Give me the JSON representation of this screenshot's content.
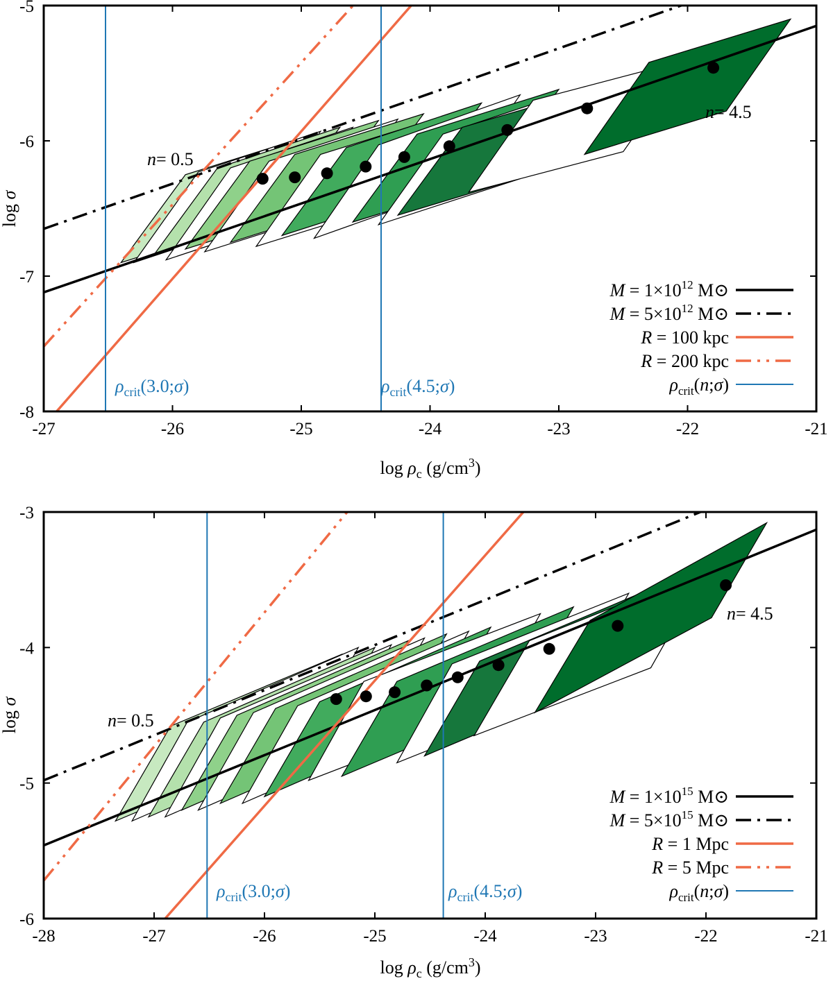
{
  "colors": {
    "solid_mass": "#000000",
    "radius": "#ef6a45",
    "critical": "#1f77b4",
    "greens": [
      "#c7e9c0",
      "#b4e1ac",
      "#a1d99b",
      "#8fd18a",
      "#74c476",
      "#5cb868",
      "#41ab5d",
      "#2f9e52",
      "#238b45",
      "#16773c",
      "#006d2c"
    ]
  },
  "chart_data": [
    {
      "type": "line",
      "title": "",
      "xlabel": "log ρc (g/cm3)",
      "ylabel": "log σ",
      "xlim": [
        -27,
        -21
      ],
      "ylim": [
        -8,
        -5
      ],
      "xticks": [
        "-27",
        "-26",
        "-25",
        "-24",
        "-23",
        "-22",
        "-21"
      ],
      "yticks": [
        "-8",
        "-7",
        "-6",
        "-5"
      ],
      "annotations": {
        "n_low": "n= 0.5",
        "n_high": "n= 4.5",
        "crit30": "ρcrit(3.0;σ)",
        "crit45": "ρcrit(4.5;σ)"
      },
      "legend_position": "bottom-right",
      "legend": [
        {
          "label": "M = 1×10^12 M⊙",
          "style": "solid-black"
        },
        {
          "label": "M = 5×10^12 M⊙",
          "style": "dashdot-black"
        },
        {
          "label": "R = 100 kpc",
          "style": "solid-orange"
        },
        {
          "label": "R = 200 kpc",
          "style": "dashdot-orange"
        },
        {
          "label": "ρcrit(n;σ)",
          "style": "solid-blue"
        }
      ],
      "series": [
        {
          "name": "M = 1×10^12 M⊙",
          "x": [
            -27,
            -21
          ],
          "y": [
            -7.12,
            -5.15
          ]
        },
        {
          "name": "M = 5×10^12 M⊙",
          "x": [
            -27,
            -21.9
          ],
          "y": [
            -6.65,
            -4.95
          ]
        },
        {
          "name": "R = 100 kpc",
          "x": [
            -26.9,
            -24.1
          ],
          "y": [
            -8.0,
            -4.95
          ]
        },
        {
          "name": "R = 200 kpc",
          "x": [
            -27.0,
            -24.55
          ],
          "y": [
            -7.52,
            -4.95
          ]
        },
        {
          "name": "ρcrit(3.0;σ)",
          "x": [
            -26.52,
            -26.52
          ],
          "y": [
            -8,
            -5
          ]
        },
        {
          "name": "ρcrit(4.5;σ)",
          "x": [
            -24.38,
            -24.38
          ],
          "y": [
            -8,
            -5
          ]
        }
      ],
      "points": {
        "n": [
          0.5,
          1.0,
          1.5,
          2.0,
          2.5,
          3.0,
          3.5,
          4.0,
          4.5
        ],
        "x": [
          -25.3,
          -25.05,
          -24.8,
          -24.5,
          -24.2,
          -23.85,
          -23.4,
          -22.78,
          -21.8
        ],
        "y": [
          -6.28,
          -6.27,
          -6.24,
          -6.19,
          -6.12,
          -6.04,
          -5.92,
          -5.76,
          -5.46
        ]
      },
      "bands": [
        {
          "n": 0.5,
          "fill": true,
          "poly": [
            [
              -26.4,
              -6.9
            ],
            [
              -25.9,
              -6.25
            ],
            [
              -24.9,
              -5.95
            ],
            [
              -25.4,
              -6.6
            ]
          ]
        },
        {
          "n": 1.0,
          "fill": false,
          "poly": [
            [
              -26.3,
              -6.9
            ],
            [
              -25.8,
              -6.23
            ],
            [
              -24.85,
              -5.93
            ],
            [
              -25.35,
              -6.6
            ]
          ]
        },
        {
          "n": 1.0,
          "fill": true,
          "poly": [
            [
              -26.15,
              -6.85
            ],
            [
              -25.65,
              -6.2
            ],
            [
              -24.7,
              -5.9
            ],
            [
              -25.2,
              -6.55
            ]
          ]
        },
        {
          "n": 1.5,
          "fill": false,
          "poly": [
            [
              -26.05,
              -6.88
            ],
            [
              -25.55,
              -6.2
            ],
            [
              -24.6,
              -5.9
            ],
            [
              -25.1,
              -6.58
            ]
          ]
        },
        {
          "n": 1.5,
          "fill": true,
          "poly": [
            [
              -25.9,
              -6.8
            ],
            [
              -25.4,
              -6.15
            ],
            [
              -24.4,
              -5.85
            ],
            [
              -24.9,
              -6.5
            ]
          ]
        },
        {
          "n": 2.0,
          "fill": false,
          "poly": [
            [
              -25.75,
              -6.82
            ],
            [
              -25.25,
              -6.15
            ],
            [
              -24.25,
              -5.84
            ],
            [
              -24.75,
              -6.52
            ]
          ]
        },
        {
          "n": 2.0,
          "fill": true,
          "poly": [
            [
              -25.55,
              -6.75
            ],
            [
              -25.05,
              -6.1
            ],
            [
              -24.05,
              -5.8
            ],
            [
              -24.55,
              -6.45
            ]
          ]
        },
        {
          "n": 2.5,
          "fill": false,
          "poly": [
            [
              -25.35,
              -6.78
            ],
            [
              -24.85,
              -6.1
            ],
            [
              -23.8,
              -5.79
            ],
            [
              -24.3,
              -6.47
            ]
          ]
        },
        {
          "n": 2.5,
          "fill": true,
          "poly": [
            [
              -25.15,
              -6.7
            ],
            [
              -24.65,
              -6.05
            ],
            [
              -23.6,
              -5.72
            ],
            [
              -24.1,
              -6.38
            ]
          ]
        },
        {
          "n": 3.0,
          "fill": false,
          "poly": [
            [
              -24.9,
              -6.72
            ],
            [
              -24.4,
              -6.03
            ],
            [
              -23.3,
              -5.66
            ],
            [
              -23.8,
              -6.35
            ]
          ]
        },
        {
          "n": 3.0,
          "fill": true,
          "poly": [
            [
              -24.6,
              -6.6
            ],
            [
              -24.1,
              -5.95
            ],
            [
              -23.0,
              -5.62
            ],
            [
              -23.5,
              -6.28
            ]
          ]
        },
        {
          "n": 3.5,
          "fill": false,
          "poly": [
            [
              -24.4,
              -6.62
            ],
            [
              -23.9,
              -5.95
            ],
            [
              -22.8,
              -5.6
            ],
            [
              -23.3,
              -6.28
            ]
          ]
        },
        {
          "n": 3.5,
          "fill": true,
          "poly": [
            [
              -24.25,
              -6.55
            ],
            [
              -23.75,
              -5.9
            ],
            [
              -22.6,
              -5.58
            ],
            [
              -23.1,
              -6.22
            ]
          ]
        },
        {
          "n": 4.0,
          "fill": false,
          "poly": [
            [
              -23.7,
              -6.38
            ],
            [
              -23.2,
              -5.7
            ],
            [
              -22.0,
              -5.4
            ],
            [
              -22.5,
              -6.08
            ]
          ]
        },
        {
          "n": 4.5,
          "fill": true,
          "poly": [
            [
              -22.8,
              -6.1
            ],
            [
              -22.3,
              -5.42
            ],
            [
              -21.2,
              -5.1
            ],
            [
              -21.7,
              -5.78
            ]
          ]
        }
      ]
    },
    {
      "type": "line",
      "title": "",
      "xlabel": "log ρc (g/cm3)",
      "ylabel": "log σ",
      "xlim": [
        -28,
        -21
      ],
      "ylim": [
        -6,
        -3
      ],
      "xticks": [
        "-28",
        "-27",
        "-26",
        "-25",
        "-24",
        "-23",
        "-22",
        "-21"
      ],
      "yticks": [
        "-6",
        "-5",
        "-4",
        "-3"
      ],
      "annotations": {
        "n_low": "n= 0.5",
        "n_high": "n= 4.5",
        "crit30": "ρcrit(3.0;σ)",
        "crit45": "ρcrit(4.5;σ)"
      },
      "legend_position": "bottom-right",
      "legend": [
        {
          "label": "M = 1×10^15 M⊙",
          "style": "solid-black"
        },
        {
          "label": "M = 5×10^15 M⊙",
          "style": "dashdot-black"
        },
        {
          "label": "R = 1 Mpc",
          "style": "solid-orange"
        },
        {
          "label": "R = 5 Mpc",
          "style": "dashdot-orange"
        },
        {
          "label": "ρcrit(n;σ)",
          "style": "solid-blue"
        }
      ],
      "series": [
        {
          "name": "M = 1×10^15 M⊙",
          "x": [
            -28,
            -21
          ],
          "y": [
            -5.46,
            -3.13
          ]
        },
        {
          "name": "M = 5×10^15 M⊙",
          "x": [
            -28,
            -21.9
          ],
          "y": [
            -4.98,
            -2.95
          ]
        },
        {
          "name": "R = 1 Mpc",
          "x": [
            -26.9,
            -23.6
          ],
          "y": [
            -6.0,
            -2.95
          ]
        },
        {
          "name": "R = 5 Mpc",
          "x": [
            -28.0,
            -25.2
          ],
          "y": [
            -5.72,
            -2.95
          ]
        },
        {
          "name": "ρcrit(3.0;σ)",
          "x": [
            -26.52,
            -26.52
          ],
          "y": [
            -6,
            -3
          ]
        },
        {
          "name": "ρcrit(4.5;σ)",
          "x": [
            -24.38,
            -24.38
          ],
          "y": [
            -6,
            -3
          ]
        }
      ],
      "points": {
        "n": [
          0.5,
          1.0,
          1.5,
          2.0,
          2.5,
          3.0,
          3.5,
          4.0,
          4.5
        ],
        "x": [
          -25.35,
          -25.08,
          -24.82,
          -24.53,
          -24.25,
          -23.88,
          -23.42,
          -22.8,
          -21.82
        ],
        "y": [
          -4.38,
          -4.36,
          -4.33,
          -4.28,
          -4.22,
          -4.13,
          -4.01,
          -3.84,
          -3.54
        ]
      },
      "bands": [
        {
          "n": 0.5,
          "fill": true,
          "poly": [
            [
              -27.35,
              -5.28
            ],
            [
              -26.85,
              -4.58
            ],
            [
              -25.3,
              -4.05
            ],
            [
              -25.8,
              -4.75
            ]
          ]
        },
        {
          "n": 1.0,
          "fill": false,
          "poly": [
            [
              -27.2,
              -5.28
            ],
            [
              -26.7,
              -4.55
            ],
            [
              -25.15,
              -4.0
            ],
            [
              -25.65,
              -4.73
            ]
          ]
        },
        {
          "n": 1.0,
          "fill": true,
          "poly": [
            [
              -27.05,
              -5.25
            ],
            [
              -26.55,
              -4.55
            ],
            [
              -25.0,
              -4.0
            ],
            [
              -25.5,
              -4.7
            ]
          ]
        },
        {
          "n": 1.5,
          "fill": false,
          "poly": [
            [
              -26.9,
              -5.25
            ],
            [
              -26.4,
              -4.52
            ],
            [
              -24.85,
              -3.98
            ],
            [
              -25.35,
              -4.7
            ]
          ]
        },
        {
          "n": 1.5,
          "fill": true,
          "poly": [
            [
              -26.75,
              -5.2
            ],
            [
              -26.25,
              -4.5
            ],
            [
              -24.7,
              -3.95
            ],
            [
              -25.2,
              -4.65
            ]
          ]
        },
        {
          "n": 2.0,
          "fill": false,
          "poly": [
            [
              -26.6,
              -5.2
            ],
            [
              -26.1,
              -4.48
            ],
            [
              -24.55,
              -3.93
            ],
            [
              -25.05,
              -4.65
            ]
          ]
        },
        {
          "n": 2.0,
          "fill": true,
          "poly": [
            [
              -26.4,
              -5.15
            ],
            [
              -25.9,
              -4.45
            ],
            [
              -24.35,
              -3.9
            ],
            [
              -24.85,
              -4.6
            ]
          ]
        },
        {
          "n": 2.5,
          "fill": false,
          "poly": [
            [
              -26.2,
              -5.15
            ],
            [
              -25.7,
              -4.43
            ],
            [
              -24.15,
              -3.88
            ],
            [
              -24.65,
              -4.6
            ]
          ]
        },
        {
          "n": 2.5,
          "fill": true,
          "poly": [
            [
              -26.0,
              -5.1
            ],
            [
              -25.5,
              -4.4
            ],
            [
              -23.95,
              -3.85
            ],
            [
              -24.45,
              -4.55
            ]
          ]
        },
        {
          "n": 3.0,
          "fill": false,
          "poly": [
            [
              -25.6,
              -4.98
            ],
            [
              -25.1,
              -4.25
            ],
            [
              -23.5,
              -3.75
            ],
            [
              -24.0,
              -4.48
            ]
          ]
        },
        {
          "n": 3.0,
          "fill": true,
          "poly": [
            [
              -25.3,
              -4.95
            ],
            [
              -24.8,
              -4.25
            ],
            [
              -23.2,
              -3.7
            ],
            [
              -23.7,
              -4.4
            ]
          ]
        },
        {
          "n": 3.5,
          "fill": false,
          "poly": [
            [
              -24.8,
              -4.85
            ],
            [
              -24.3,
              -4.12
            ],
            [
              -22.7,
              -3.6
            ],
            [
              -23.2,
              -4.33
            ]
          ]
        },
        {
          "n": 3.5,
          "fill": true,
          "poly": [
            [
              -24.55,
              -4.8
            ],
            [
              -24.05,
              -4.1
            ],
            [
              -22.45,
              -3.55
            ],
            [
              -22.95,
              -4.25
            ]
          ]
        },
        {
          "n": 4.0,
          "fill": false,
          "poly": [
            [
              -24.1,
              -4.65
            ],
            [
              -23.6,
              -3.95
            ],
            [
              -22.0,
              -3.43
            ],
            [
              -22.5,
              -4.15
            ]
          ]
        },
        {
          "n": 4.5,
          "fill": true,
          "poly": [
            [
              -23.55,
              -4.48
            ],
            [
              -23.05,
              -3.8
            ],
            [
              -21.45,
              -3.08
            ],
            [
              -21.95,
              -3.78
            ]
          ]
        }
      ]
    }
  ]
}
